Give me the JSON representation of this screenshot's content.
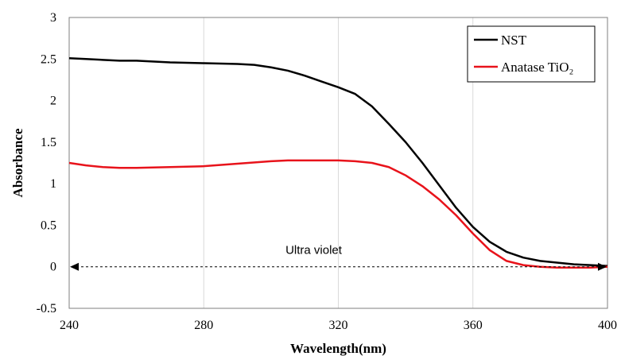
{
  "chart_data": {
    "type": "line",
    "title": "",
    "xlabel": "Wavelength(nm)",
    "ylabel": "Absorbance",
    "xlim": [
      240,
      400
    ],
    "ylim": [
      -0.5,
      3
    ],
    "xticks": [
      "240",
      "280",
      "320",
      "360",
      "400"
    ],
    "yticks": [
      "-0.5",
      "0",
      "0.5",
      "1",
      "1.5",
      "2",
      "2.5",
      "3"
    ],
    "grid": "vertical",
    "legend_position": "top-right",
    "series": [
      {
        "name": "NST",
        "color": "#000000",
        "x": [
          240,
          245,
          250,
          255,
          260,
          270,
          280,
          290,
          295,
          300,
          305,
          310,
          315,
          320,
          325,
          330,
          335,
          340,
          345,
          350,
          355,
          360,
          365,
          370,
          375,
          380,
          385,
          390,
          395,
          400
        ],
        "y": [
          2.51,
          2.5,
          2.49,
          2.48,
          2.48,
          2.46,
          2.45,
          2.44,
          2.43,
          2.4,
          2.36,
          2.3,
          2.23,
          2.16,
          2.08,
          1.93,
          1.72,
          1.5,
          1.25,
          0.98,
          0.71,
          0.48,
          0.3,
          0.18,
          0.11,
          0.07,
          0.05,
          0.03,
          0.02,
          0.01
        ]
      },
      {
        "name": "Anatase TiO₂",
        "color": "#e8131b",
        "x": [
          240,
          245,
          250,
          255,
          260,
          270,
          280,
          290,
          300,
          305,
          310,
          315,
          320,
          325,
          330,
          335,
          340,
          345,
          350,
          355,
          360,
          365,
          370,
          375,
          380,
          385,
          390,
          395,
          400
        ],
        "y": [
          1.25,
          1.22,
          1.2,
          1.19,
          1.19,
          1.2,
          1.21,
          1.24,
          1.27,
          1.28,
          1.28,
          1.28,
          1.28,
          1.27,
          1.25,
          1.2,
          1.1,
          0.97,
          0.81,
          0.62,
          0.4,
          0.2,
          0.07,
          0.02,
          0.0,
          -0.01,
          -0.01,
          -0.01,
          0.0
        ]
      }
    ],
    "annotations": [
      {
        "text": "Ultra violet",
        "type": "double-arrow",
        "x_start": 240,
        "x_end": 400,
        "y": 0
      }
    ]
  }
}
